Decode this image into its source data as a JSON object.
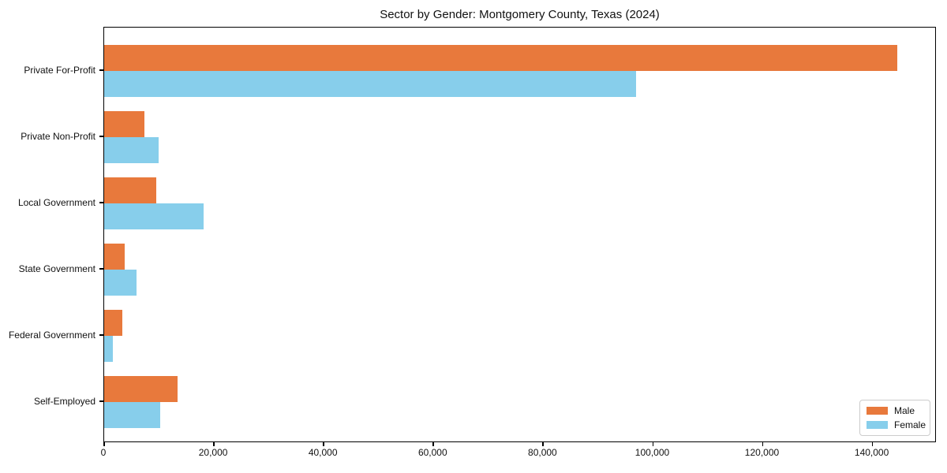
{
  "chart_data": {
    "type": "bar",
    "orientation": "horizontal",
    "title": "Sector by Gender: Montgomery County, Texas (2024)",
    "categories": [
      "Private For-Profit",
      "Private Non-Profit",
      "Local Government",
      "State Government",
      "Federal Government",
      "Self-Employed"
    ],
    "series": [
      {
        "name": "Male",
        "color": "#e8793c",
        "values": [
          144500,
          7300,
          9500,
          3700,
          3300,
          13400
        ]
      },
      {
        "name": "Female",
        "color": "#87ceeb",
        "values": [
          96900,
          9900,
          18100,
          5900,
          1600,
          10200
        ]
      }
    ],
    "xlim": [
      0,
      151700
    ],
    "x_ticks": [
      0,
      20000,
      40000,
      60000,
      80000,
      100000,
      120000,
      140000
    ],
    "x_tick_labels": [
      "0",
      "20,000",
      "40,000",
      "60,000",
      "80,000",
      "100,000",
      "120,000",
      "140,000"
    ],
    "ylabel": "",
    "xlabel": "",
    "grid": false,
    "legend": {
      "position": "lower right",
      "entries": [
        "Male",
        "Female"
      ]
    }
  }
}
